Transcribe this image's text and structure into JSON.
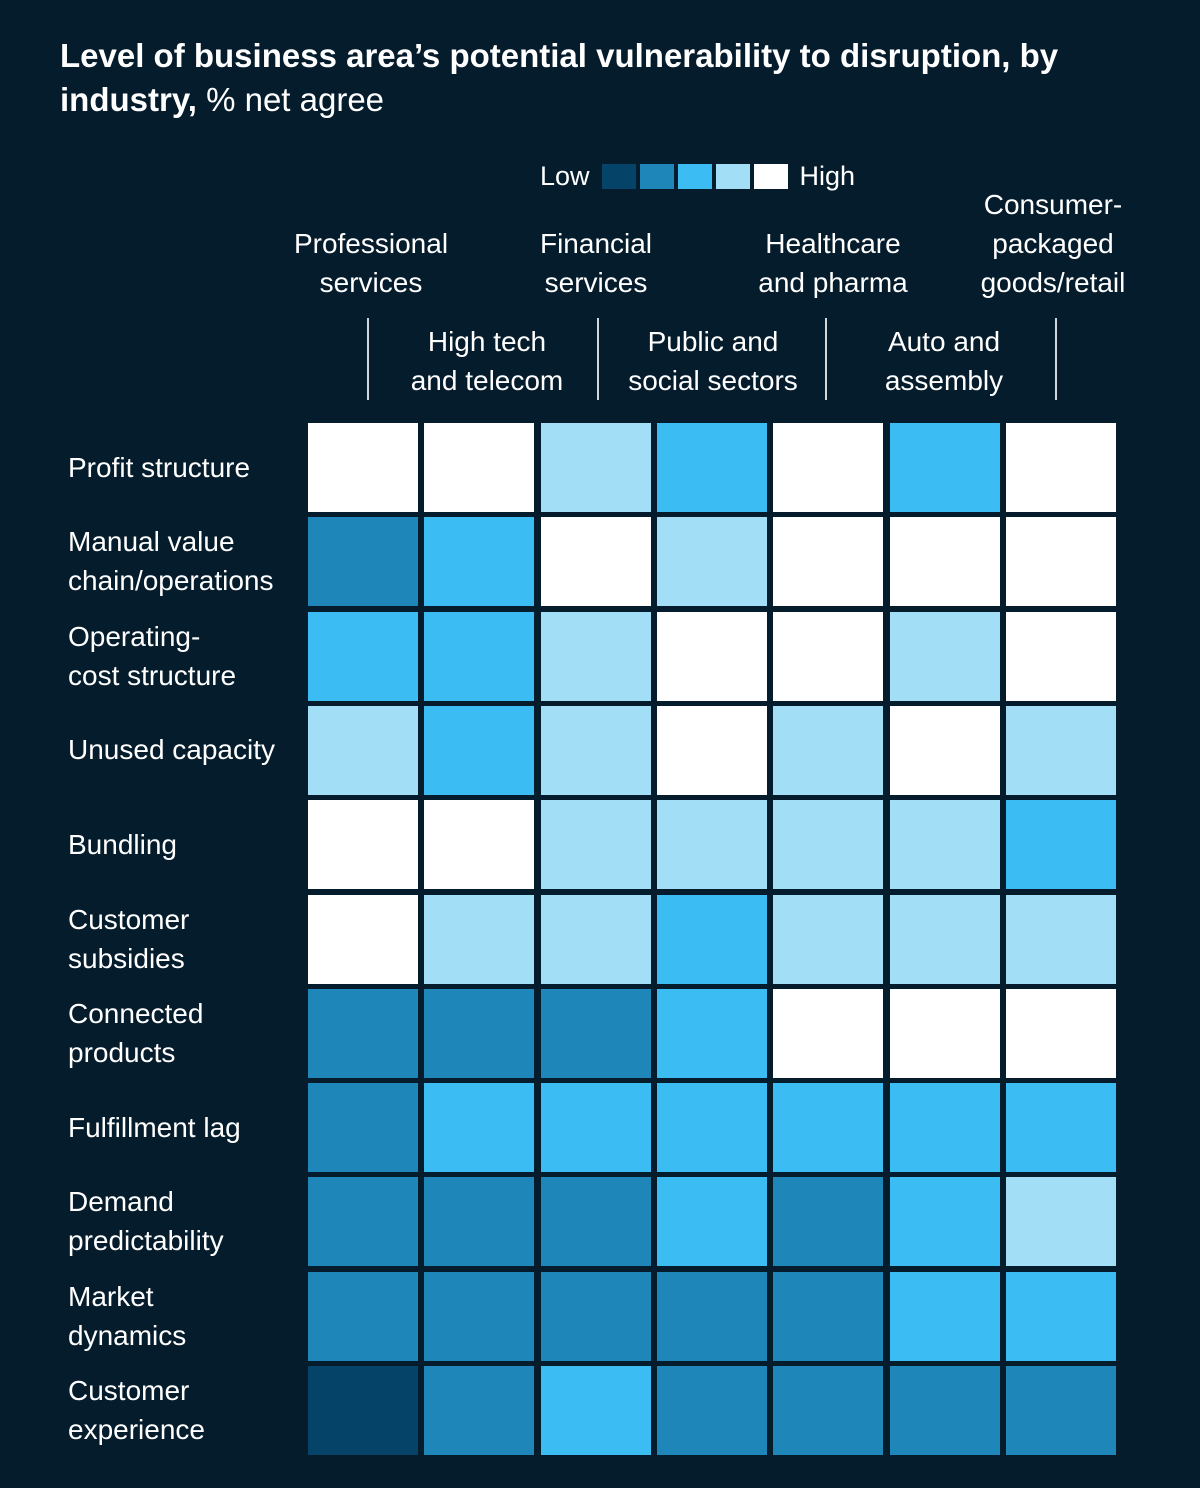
{
  "title_bold": "Level of business area’s potential vulnerability to disruption, by industry,",
  "title_normal": "% net agree",
  "legend": {
    "low": "Low",
    "high": "High",
    "colors": [
      "#054468",
      "#1f86b9",
      "#3bbdf3",
      "#a2def6",
      "#ffffff"
    ]
  },
  "chart_data": {
    "type": "heatmap",
    "title": "Level of business area’s potential vulnerability to disruption, by industry, % net agree",
    "scale": "1 = Low ... 5 = High",
    "columns": [
      [
        "Professional",
        "services"
      ],
      [
        "High tech",
        "and telecom"
      ],
      [
        "Financial",
        "services"
      ],
      [
        "Public and",
        "social sectors"
      ],
      [
        "Healthcare",
        "and pharma"
      ],
      [
        "Auto and",
        "assembly"
      ],
      [
        "Consumer-",
        "packaged",
        "goods/retail"
      ]
    ],
    "rows": [
      [
        "Profit structure"
      ],
      [
        "Manual value",
        "chain/operations"
      ],
      [
        "Operating-",
        "cost structure"
      ],
      [
        "Unused capacity"
      ],
      [
        "Bundling"
      ],
      [
        "Customer",
        "subsidies"
      ],
      [
        "Connected",
        "products"
      ],
      [
        "Fulfillment lag"
      ],
      [
        "Demand",
        "predictability"
      ],
      [
        "Market",
        "dynamics"
      ],
      [
        "Customer",
        "experience"
      ]
    ],
    "values": [
      [
        5,
        5,
        4,
        3,
        5,
        3,
        5
      ],
      [
        2,
        3,
        5,
        4,
        5,
        5,
        5
      ],
      [
        3,
        3,
        4,
        5,
        5,
        4,
        5
      ],
      [
        4,
        3,
        4,
        5,
        4,
        5,
        4
      ],
      [
        5,
        5,
        4,
        4,
        4,
        4,
        3
      ],
      [
        5,
        4,
        4,
        3,
        4,
        4,
        4
      ],
      [
        2,
        2,
        2,
        3,
        5,
        5,
        5
      ],
      [
        2,
        3,
        3,
        3,
        3,
        3,
        3
      ],
      [
        2,
        2,
        2,
        3,
        2,
        3,
        4
      ],
      [
        2,
        2,
        2,
        2,
        2,
        3,
        3
      ],
      [
        1,
        2,
        3,
        2,
        2,
        2,
        2
      ]
    ]
  }
}
